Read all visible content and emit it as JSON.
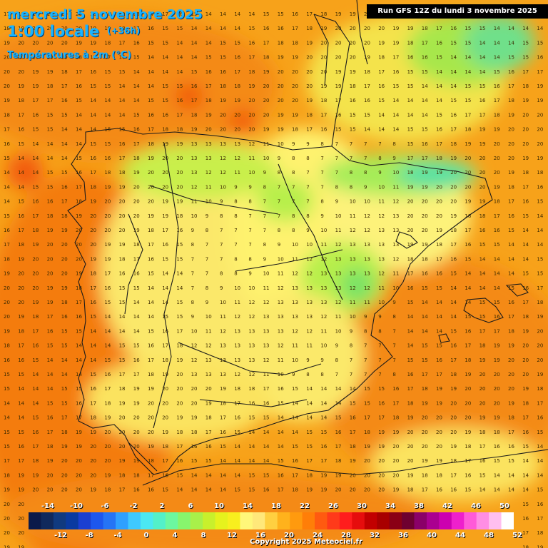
{
  "header": {
    "date": "mercredi 5 novembre 2025",
    "time": "1:00 locale",
    "offset": "(+36h)",
    "variable": "Températures à 2m (°C)",
    "run": "Run GFS 12Z du lundi 3 novembre 2025"
  },
  "legend": {
    "top_labels": [
      "-14",
      "-10",
      "-6",
      "-2",
      "2",
      "6",
      "10",
      "14",
      "18",
      "22",
      "26",
      "30",
      "34",
      "38",
      "42",
      "46",
      "50"
    ],
    "bottom_labels": [
      "-12",
      "-8",
      "-4",
      "0",
      "4",
      "8",
      "12",
      "16",
      "20",
      "24",
      "28",
      "32",
      "36",
      "40",
      "44",
      "48",
      "52"
    ],
    "colors": [
      "#0b1a4a",
      "#10295c",
      "#103a7f",
      "#0a3aa0",
      "#1a3fd1",
      "#1d57ee",
      "#2574f5",
      "#2fa0ff",
      "#3fc9ff",
      "#4be8f2",
      "#53f0c9",
      "#6cf7a0",
      "#87f56d",
      "#a8f04a",
      "#c8f02c",
      "#e6f21d",
      "#f8ef1e",
      "#fff77a",
      "#ffe87a",
      "#ffd040",
      "#ffb21c",
      "#ff9a0e",
      "#ff7e08",
      "#ff5a10",
      "#ff3a1a",
      "#ff1d1d",
      "#e60d0d",
      "#c20000",
      "#a80000",
      "#8a0015",
      "#6e0030",
      "#8a0068",
      "#aa0090",
      "#cc00b0",
      "#ee20cc",
      "#ff5ad8",
      "#ff8ee4",
      "#ffbff0",
      "#ffffff"
    ]
  },
  "copyright": "Copyright 2025 Meteociel.fr"
}
